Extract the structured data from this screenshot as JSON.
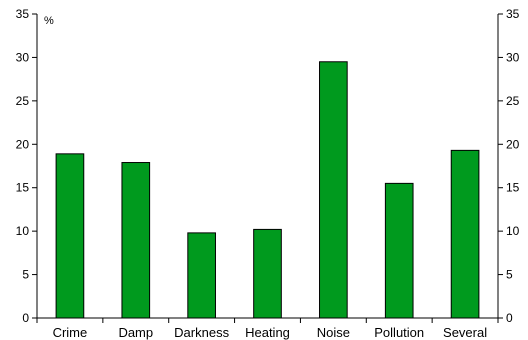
{
  "chart_data": {
    "type": "bar",
    "categories": [
      "Crime",
      "Damp",
      "Darkness",
      "Heating",
      "Noise",
      "Pollution",
      "Several"
    ],
    "values": [
      18.9,
      17.9,
      9.8,
      10.2,
      29.5,
      15.5,
      19.3
    ],
    "unit_label": "%",
    "ylim": [
      0,
      35
    ],
    "yticks": [
      0,
      5,
      10,
      15,
      20,
      25,
      30,
      35
    ],
    "ytick_labels": [
      "0",
      "5",
      "10",
      "15",
      "20",
      "25",
      "30",
      "35"
    ],
    "secondary_y_axis": true,
    "grid": false,
    "bar_color": "#009a1e",
    "bar_edge_color": "#000000"
  }
}
